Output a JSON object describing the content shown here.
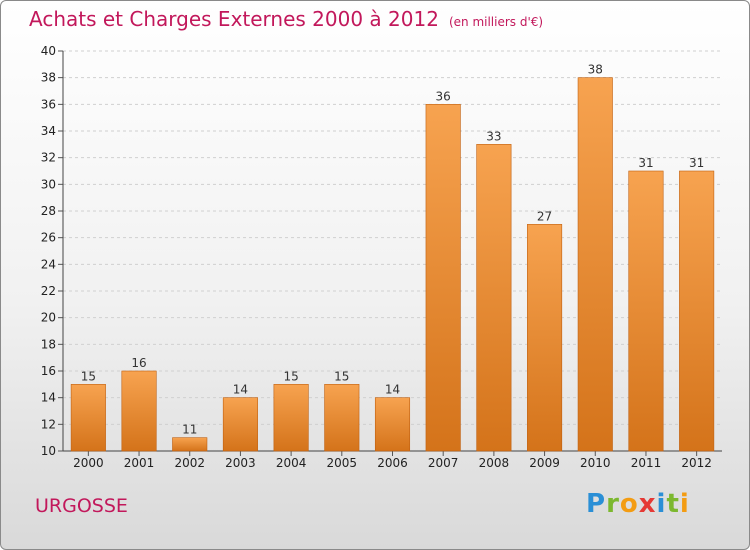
{
  "header": {
    "title": "Achats et Charges Externes 2000 à 2012",
    "subtitle": "(en milliers d'€)"
  },
  "commune": "URGOSSE",
  "logo": {
    "letters": [
      {
        "char": "P",
        "color": "#2a8fd6"
      },
      {
        "char": "r",
        "color": "#7cb82f"
      },
      {
        "char": "o",
        "color": "#f39c12"
      },
      {
        "char": "x",
        "color": "#e53935"
      },
      {
        "char": "i",
        "color": "#2a8fd6"
      },
      {
        "char": "t",
        "color": "#7cb82f"
      },
      {
        "char": "i",
        "color": "#f39c12"
      }
    ]
  },
  "colors": {
    "bar_top": "#f7a350",
    "bar_bottom": "#d4731a",
    "grid": "#d0d0d0",
    "accent": "#c2185b"
  },
  "chart_data": {
    "type": "bar",
    "title": "Achats et Charges Externes 2000 à 2012",
    "subtitle": "(en milliers d'€)",
    "categories": [
      "2000",
      "2001",
      "2002",
      "2003",
      "2004",
      "2005",
      "2006",
      "2007",
      "2008",
      "2009",
      "2010",
      "2011",
      "2012"
    ],
    "values": [
      15,
      16,
      11,
      14,
      15,
      15,
      14,
      36,
      33,
      27,
      38,
      31,
      31
    ],
    "ylim": [
      10,
      40
    ],
    "yticks": [
      10,
      12,
      14,
      16,
      18,
      20,
      22,
      24,
      26,
      28,
      30,
      32,
      34,
      36,
      38,
      40
    ],
    "grid": true,
    "legend": "none",
    "xlabel": "",
    "ylabel": ""
  }
}
